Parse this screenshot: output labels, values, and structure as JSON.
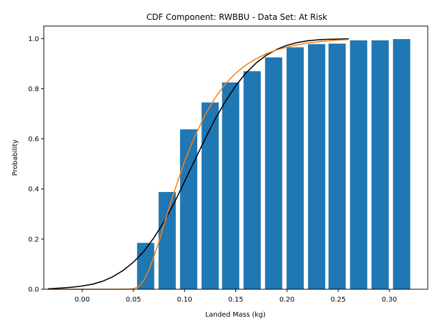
{
  "chart_data": {
    "type": "bar",
    "title": "CDF Component: RWBBU - Data Set: At Risk",
    "xlabel": "Landed Mass (kg)",
    "ylabel": "Probability",
    "xlim": [
      -0.0375,
      0.3375
    ],
    "ylim": [
      0,
      1.05
    ],
    "grid": false,
    "x_ticks": [
      0.0,
      0.05,
      0.1,
      0.15,
      0.2,
      0.25,
      0.3
    ],
    "x_tick_labels": [
      "0.00",
      "0.05",
      "0.10",
      "0.15",
      "0.20",
      "0.25",
      "0.30"
    ],
    "y_ticks": [
      0.0,
      0.2,
      0.4,
      0.6,
      0.8,
      1.0
    ],
    "y_tick_labels": [
      "0.0",
      "0.2",
      "0.4",
      "0.6",
      "0.8",
      "1.0"
    ],
    "bar_color": "#1f77b4",
    "bar_width": 0.0168,
    "bars": {
      "x": [
        0.062,
        0.083,
        0.104,
        0.125,
        0.145,
        0.166,
        0.187,
        0.208,
        0.229,
        0.249,
        0.27,
        0.291,
        0.312
      ],
      "values": [
        0.185,
        0.388,
        0.638,
        0.745,
        0.825,
        0.87,
        0.925,
        0.965,
        0.978,
        0.98,
        0.993,
        0.993,
        0.998
      ]
    },
    "series": [
      {
        "type": "line",
        "color": "#000000",
        "x": [
          -0.033,
          -0.02,
          -0.01,
          0.0,
          0.01,
          0.02,
          0.03,
          0.04,
          0.05,
          0.06,
          0.07,
          0.08,
          0.09,
          0.1,
          0.11,
          0.12,
          0.13,
          0.14,
          0.15,
          0.16,
          0.17,
          0.18,
          0.19,
          0.2,
          0.21,
          0.22,
          0.23,
          0.24,
          0.25,
          0.26
        ],
        "y": [
          0.002,
          0.005,
          0.008,
          0.013,
          0.02,
          0.032,
          0.05,
          0.075,
          0.108,
          0.15,
          0.205,
          0.27,
          0.345,
          0.43,
          0.515,
          0.6,
          0.68,
          0.75,
          0.812,
          0.863,
          0.903,
          0.934,
          0.957,
          0.973,
          0.984,
          0.991,
          0.995,
          0.997,
          0.998,
          0.999
        ]
      },
      {
        "type": "line",
        "color": "#ff7f0e",
        "x": [
          -0.033,
          0.0,
          0.04,
          0.05,
          0.055,
          0.06,
          0.065,
          0.07,
          0.075,
          0.08,
          0.09,
          0.1,
          0.11,
          0.12,
          0.13,
          0.14,
          0.15,
          0.16,
          0.17,
          0.18,
          0.19,
          0.2,
          0.21,
          0.22,
          0.23,
          0.24,
          0.25,
          0.26
        ],
        "y": [
          0.0,
          0.0,
          0.0,
          0.002,
          0.01,
          0.035,
          0.075,
          0.13,
          0.19,
          0.26,
          0.39,
          0.51,
          0.61,
          0.695,
          0.765,
          0.82,
          0.862,
          0.895,
          0.92,
          0.94,
          0.955,
          0.966,
          0.975,
          0.982,
          0.987,
          0.991,
          0.994,
          0.996
        ]
      }
    ]
  }
}
